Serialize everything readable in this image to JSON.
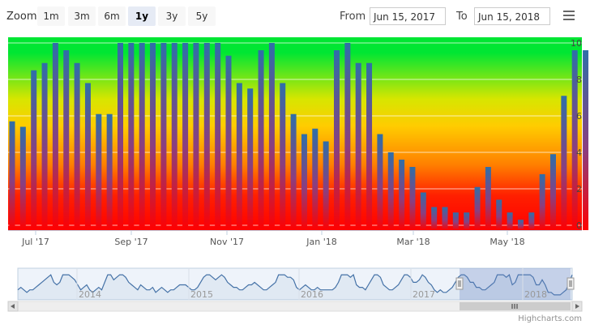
{
  "range_selector": {
    "zoom_label": "Zoom",
    "buttons": [
      "1m",
      "3m",
      "6m",
      "1y",
      "3y",
      "5y"
    ],
    "selected": "1y",
    "from_label": "From",
    "from_value": "Jun 15, 2017",
    "to_label": "To",
    "to_value": "Jun 15, 2018"
  },
  "menu": {
    "icon": "hamburger-menu-icon"
  },
  "credits": "Highcharts.com",
  "colors": {
    "red": "#ff0000",
    "orange": "#ff8c00",
    "yellow": "#ffcc00",
    "green": "#00e633",
    "bar_top": "#2f6fa8",
    "bar_bottom": "#ff0000",
    "navigator_line": "#4572a7",
    "navigator_mask": "#c8d2e6"
  },
  "chart_data": {
    "type": "bar",
    "x_tick_labels": [
      "Jul '17",
      "Sep '17",
      "Nov '17",
      "Jan '18",
      "Mar '18",
      "May '18"
    ],
    "y_tick_labels": [
      "0",
      "2",
      "4",
      "6",
      "8",
      "10"
    ],
    "ylim": [
      0,
      10
    ],
    "values": [
      5.7,
      5.4,
      8.5,
      8.9,
      10,
      9.6,
      8.9,
      7.8,
      6.1,
      6.1,
      10,
      10,
      10,
      10,
      10,
      10,
      10,
      10,
      10,
      10,
      9.3,
      7.8,
      7.5,
      9.6,
      10,
      7.8,
      6.1,
      5.0,
      5.3,
      4.6,
      9.6,
      10,
      8.9,
      8.9,
      5.0,
      4.0,
      3.6,
      3.2,
      1.8,
      1.0,
      1.0,
      0.7,
      0.7,
      2.1,
      3.2,
      1.4,
      0.7,
      0.3,
      0.7,
      2.8,
      3.9,
      7.1,
      9.6,
      9.6
    ],
    "navigator": {
      "year_labels": [
        "2014",
        "2015",
        "2016",
        "2017",
        "2018"
      ],
      "values": [
        3,
        4,
        3,
        2,
        3,
        3,
        4,
        5,
        6,
        7,
        8,
        9,
        6,
        5,
        6,
        9,
        9,
        9,
        8,
        7,
        5,
        3,
        4,
        5,
        3,
        2,
        3,
        4,
        3,
        6,
        9,
        9,
        7,
        8,
        9,
        9,
        8,
        6,
        5,
        4,
        3,
        5,
        4,
        3,
        3,
        4,
        2,
        3,
        4,
        3,
        2,
        3,
        3,
        4,
        5,
        5,
        5,
        4,
        3,
        3,
        4,
        6,
        8,
        9,
        9,
        8,
        7,
        8,
        9,
        8,
        6,
        5,
        4,
        4,
        3,
        3,
        4,
        5,
        5,
        6,
        5,
        4,
        3,
        3,
        4,
        5,
        6,
        9,
        9,
        9,
        8,
        8,
        7,
        4,
        3,
        4,
        5,
        4,
        3,
        3,
        4,
        3,
        3,
        3,
        3,
        3,
        4,
        6,
        9,
        9,
        9,
        8,
        9,
        5,
        4,
        4,
        3,
        5,
        7,
        9,
        9,
        8,
        5,
        4,
        3,
        3,
        4,
        5,
        7,
        9,
        9,
        8,
        6,
        6,
        7,
        9,
        8,
        6,
        5,
        3,
        2,
        3,
        2,
        2,
        3,
        4,
        6,
        8,
        9,
        9,
        8,
        6,
        6,
        4,
        4,
        3,
        3,
        4,
        5,
        6,
        9,
        9,
        9,
        8,
        9,
        5,
        6,
        9,
        9,
        9,
        9,
        9,
        8,
        5,
        5,
        7,
        5,
        2,
        2,
        1,
        1,
        1,
        2,
        3,
        6,
        9
      ]
    }
  }
}
